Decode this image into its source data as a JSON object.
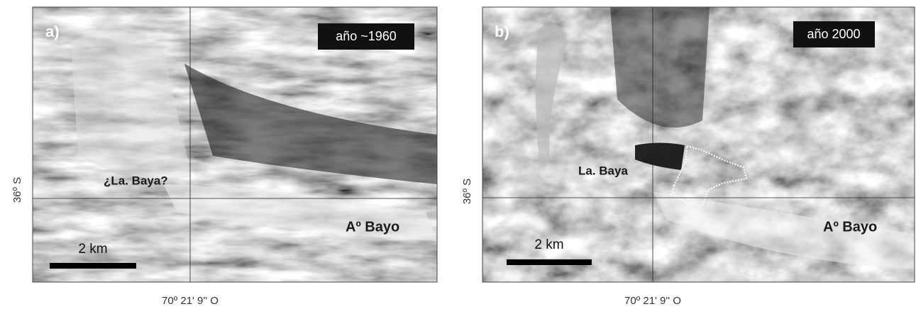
{
  "panels": [
    {
      "label": "a)",
      "year": "año ~1960",
      "places": [
        "¿La. Baya?",
        "Aº Bayo"
      ],
      "scale": "2 km",
      "latitude": "36º S",
      "longitude": "70º 21' 9'' O"
    },
    {
      "label": "b)",
      "year": "año 2000",
      "places": [
        "La. Baya",
        "Aº Bayo"
      ],
      "scale": "2 km",
      "latitude": "36º S",
      "longitude": "70º 21' 9'' O"
    }
  ]
}
